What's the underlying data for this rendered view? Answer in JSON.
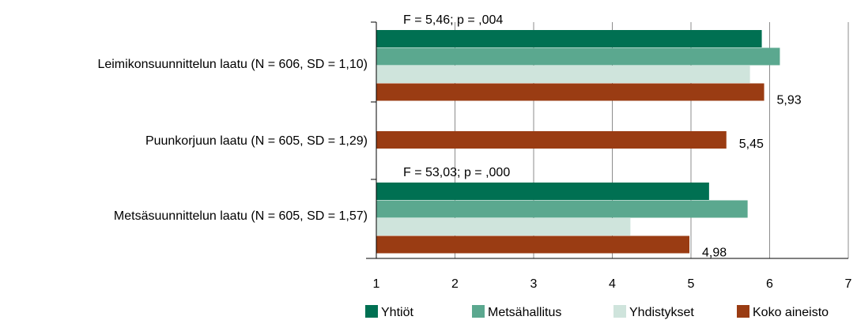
{
  "chart_data": {
    "type": "bar",
    "orientation": "horizontal",
    "categories": [
      "Leimikonsuunnittelun laatu (N = 606, SD = 1,10)",
      "Puunkorjuun laatu (N = 605, SD = 1,29)",
      "Metsäsuunnittelun laatu (N = 605, SD = 1,57)"
    ],
    "series": [
      {
        "name": "Yhtiöt",
        "color": "#007052",
        "values": [
          5.9,
          null,
          5.23
        ]
      },
      {
        "name": "Metsähallitus",
        "color": "#5ba88f",
        "values": [
          6.13,
          null,
          5.72
        ]
      },
      {
        "name": "Yhdistykset",
        "color": "#cfe4dc",
        "values": [
          5.75,
          null,
          4.23
        ]
      },
      {
        "name": "Koko aineisto",
        "color": "#9a3c13",
        "values": [
          5.93,
          5.45,
          4.98
        ]
      }
    ],
    "data_labels": [
      "5,93",
      "5,45",
      "4,98"
    ],
    "annotations": [
      "F = 5,46; p = ,004",
      "",
      "F = 53,03; p = ,000"
    ],
    "xlim": [
      1,
      7
    ],
    "ticks": [
      1,
      2,
      3,
      4,
      5,
      6,
      7
    ],
    "tick_labels": [
      "1",
      "2",
      "3",
      "4",
      "5",
      "6",
      "7"
    ],
    "grid": true,
    "legend_position": "bottom",
    "title": "",
    "xlabel": "",
    "ylabel": ""
  }
}
